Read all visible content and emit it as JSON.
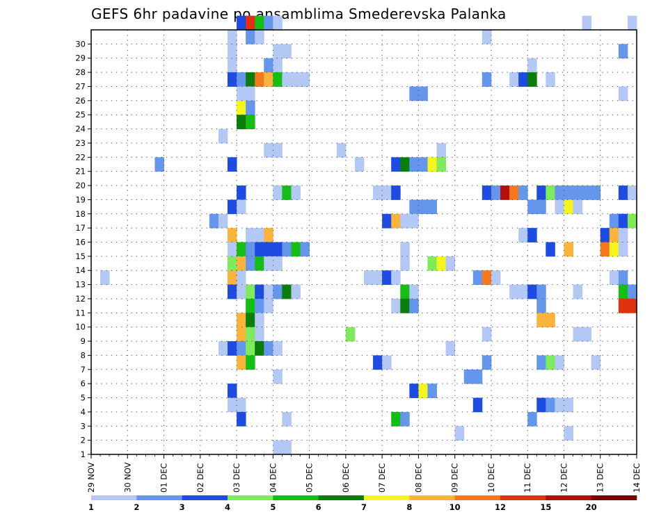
{
  "chart_data": {
    "type": "heatmap",
    "title": "GEFS 6hr padavine po ansamblima Smederevska Palanka",
    "xlabel": "",
    "ylabel": "",
    "y_members": [
      1,
      30
    ],
    "x_tick_labels": [
      "29 NOV",
      "30 NOV",
      "01 DEC",
      "02 DEC",
      "03 DEC",
      "04 DEC",
      "05 DEC",
      "06 DEC",
      "07 DEC",
      "08 DEC",
      "09 DEC",
      "10 DEC",
      "11 DEC",
      "12 DEC",
      "13 DEC",
      "14 DEC"
    ],
    "y_tick_labels": [
      "1",
      "2",
      "3",
      "4",
      "5",
      "6",
      "7",
      "8",
      "9",
      "10",
      "11",
      "12",
      "13",
      "14",
      "15",
      "16",
      "17",
      "18",
      "19",
      "20",
      "21",
      "22",
      "23",
      "24",
      "25",
      "26",
      "27",
      "28",
      "29",
      "30"
    ],
    "x_steps_per_day": 4,
    "grid": true,
    "colorbar": {
      "labels": [
        "1",
        "2",
        "3",
        "4",
        "5",
        "6",
        "7",
        "8",
        "10",
        "12",
        "15",
        "20"
      ],
      "colors": [
        "#b4c8f5",
        "#6496eb",
        "#1e4be1",
        "#7deb5a",
        "#14be14",
        "#0a7d0a",
        "#f5f51e",
        "#fab43c",
        "#f5781e",
        "#e1320f",
        "#b40f0a",
        "#780000"
      ]
    },
    "cells": [
      [
        30,
        16,
        3
      ],
      [
        30,
        17,
        10
      ],
      [
        30,
        18,
        5
      ],
      [
        30,
        19,
        2
      ],
      [
        30,
        20,
        1
      ],
      [
        30,
        54,
        1
      ],
      [
        30,
        59,
        1
      ],
      [
        30,
        60,
        1
      ],
      [
        29,
        15,
        1
      ],
      [
        29,
        17,
        2
      ],
      [
        29,
        18,
        1
      ],
      [
        29,
        43,
        1
      ],
      [
        28,
        15,
        1
      ],
      [
        28,
        20,
        1
      ],
      [
        28,
        21,
        1
      ],
      [
        28,
        58,
        2
      ],
      [
        27,
        15,
        1
      ],
      [
        27,
        19,
        2
      ],
      [
        27,
        20,
        1
      ],
      [
        27,
        48,
        1
      ],
      [
        26,
        15,
        3
      ],
      [
        26,
        16,
        2
      ],
      [
        26,
        17,
        6
      ],
      [
        26,
        18,
        9
      ],
      [
        26,
        19,
        8
      ],
      [
        26,
        20,
        5
      ],
      [
        26,
        21,
        1
      ],
      [
        26,
        22,
        1
      ],
      [
        26,
        23,
        1
      ],
      [
        26,
        43,
        2
      ],
      [
        26,
        46,
        1
      ],
      [
        26,
        47,
        3
      ],
      [
        26,
        48,
        6
      ],
      [
        26,
        50,
        1
      ],
      [
        25,
        16,
        1
      ],
      [
        25,
        17,
        1
      ],
      [
        25,
        35,
        2
      ],
      [
        25,
        36,
        2
      ],
      [
        25,
        58,
        1
      ],
      [
        24,
        16,
        7
      ],
      [
        24,
        17,
        2
      ],
      [
        23,
        16,
        6
      ],
      [
        23,
        17,
        5
      ],
      [
        22,
        14,
        1
      ],
      [
        21,
        19,
        1
      ],
      [
        21,
        20,
        1
      ],
      [
        21,
        27,
        1
      ],
      [
        21,
        38,
        1
      ],
      [
        20,
        7,
        2
      ],
      [
        20,
        15,
        3
      ],
      [
        20,
        29,
        1
      ],
      [
        20,
        33,
        3
      ],
      [
        20,
        34,
        6
      ],
      [
        20,
        35,
        2
      ],
      [
        20,
        36,
        2
      ],
      [
        20,
        37,
        7
      ],
      [
        20,
        38,
        4
      ],
      [
        18,
        16,
        3
      ],
      [
        18,
        20,
        1
      ],
      [
        18,
        21,
        5
      ],
      [
        18,
        22,
        1
      ],
      [
        18,
        31,
        1
      ],
      [
        18,
        32,
        1
      ],
      [
        18,
        33,
        3
      ],
      [
        18,
        43,
        3
      ],
      [
        18,
        44,
        2
      ],
      [
        18,
        45,
        11
      ],
      [
        18,
        46,
        9
      ],
      [
        18,
        47,
        2
      ],
      [
        18,
        49,
        3
      ],
      [
        18,
        50,
        4
      ],
      [
        18,
        51,
        2
      ],
      [
        18,
        52,
        2
      ],
      [
        18,
        53,
        2
      ],
      [
        18,
        54,
        2
      ],
      [
        18,
        55,
        2
      ],
      [
        18,
        58,
        3
      ],
      [
        18,
        59,
        1
      ],
      [
        18,
        60,
        2
      ],
      [
        17,
        15,
        3
      ],
      [
        17,
        16,
        1
      ],
      [
        17,
        35,
        2
      ],
      [
        17,
        36,
        2
      ],
      [
        17,
        37,
        2
      ],
      [
        17,
        48,
        2
      ],
      [
        17,
        49,
        2
      ],
      [
        17,
        51,
        1
      ],
      [
        17,
        52,
        7
      ],
      [
        17,
        53,
        1
      ],
      [
        16,
        13,
        2
      ],
      [
        16,
        14,
        1
      ],
      [
        16,
        32,
        3
      ],
      [
        16,
        33,
        8
      ],
      [
        16,
        34,
        1
      ],
      [
        16,
        35,
        1
      ],
      [
        16,
        57,
        2
      ],
      [
        16,
        58,
        3
      ],
      [
        16,
        59,
        4
      ],
      [
        16,
        60,
        3
      ],
      [
        15,
        15,
        8
      ],
      [
        15,
        17,
        1
      ],
      [
        15,
        18,
        1
      ],
      [
        15,
        19,
        8
      ],
      [
        15,
        47,
        1
      ],
      [
        15,
        48,
        3
      ],
      [
        15,
        56,
        3
      ],
      [
        15,
        57,
        8
      ],
      [
        15,
        58,
        1
      ],
      [
        15,
        60,
        1
      ],
      [
        14,
        15,
        1
      ],
      [
        14,
        16,
        5
      ],
      [
        14,
        17,
        2
      ],
      [
        14,
        18,
        3
      ],
      [
        14,
        19,
        3
      ],
      [
        14,
        20,
        3
      ],
      [
        14,
        21,
        2
      ],
      [
        14,
        22,
        5
      ],
      [
        14,
        23,
        2
      ],
      [
        14,
        34,
        1
      ],
      [
        14,
        50,
        3
      ],
      [
        14,
        52,
        8
      ],
      [
        14,
        56,
        9
      ],
      [
        14,
        57,
        7
      ],
      [
        14,
        58,
        1
      ],
      [
        13,
        15,
        4
      ],
      [
        13,
        16,
        8
      ],
      [
        13,
        17,
        2
      ],
      [
        13,
        18,
        5
      ],
      [
        13,
        19,
        1
      ],
      [
        13,
        20,
        1
      ],
      [
        13,
        34,
        1
      ],
      [
        13,
        37,
        4
      ],
      [
        13,
        38,
        7
      ],
      [
        13,
        39,
        1
      ],
      [
        12,
        1,
        1
      ],
      [
        12,
        15,
        8
      ],
      [
        12,
        16,
        1
      ],
      [
        12,
        30,
        1
      ],
      [
        12,
        31,
        1
      ],
      [
        12,
        32,
        3
      ],
      [
        12,
        33,
        1
      ],
      [
        12,
        42,
        2
      ],
      [
        12,
        43,
        9
      ],
      [
        12,
        44,
        1
      ],
      [
        12,
        57,
        1
      ],
      [
        12,
        58,
        2
      ],
      [
        11,
        15,
        3
      ],
      [
        11,
        16,
        1
      ],
      [
        11,
        17,
        4
      ],
      [
        11,
        18,
        3
      ],
      [
        11,
        19,
        1
      ],
      [
        11,
        20,
        2
      ],
      [
        11,
        21,
        6
      ],
      [
        11,
        22,
        1
      ],
      [
        11,
        34,
        5
      ],
      [
        11,
        35,
        1
      ],
      [
        11,
        46,
        1
      ],
      [
        11,
        47,
        1
      ],
      [
        11,
        48,
        3
      ],
      [
        11,
        49,
        2
      ],
      [
        11,
        53,
        1
      ],
      [
        11,
        58,
        5
      ],
      [
        11,
        59,
        2
      ],
      [
        11,
        61,
        1
      ],
      [
        10,
        17,
        5
      ],
      [
        10,
        18,
        2
      ],
      [
        10,
        19,
        1
      ],
      [
        10,
        33,
        1
      ],
      [
        10,
        34,
        6
      ],
      [
        10,
        35,
        2
      ],
      [
        10,
        49,
        2
      ],
      [
        10,
        58,
        10
      ],
      [
        10,
        59,
        10
      ],
      [
        10,
        60,
        1
      ],
      [
        9,
        16,
        8
      ],
      [
        9,
        17,
        6
      ],
      [
        9,
        18,
        1
      ],
      [
        9,
        49,
        8
      ],
      [
        9,
        50,
        8
      ],
      [
        9,
        61,
        12
      ],
      [
        9,
        62,
        12
      ],
      [
        8,
        16,
        8
      ],
      [
        8,
        17,
        4
      ],
      [
        8,
        18,
        1
      ],
      [
        8,
        28,
        4
      ],
      [
        8,
        43,
        1
      ],
      [
        8,
        53,
        1
      ],
      [
        8,
        54,
        1
      ],
      [
        7,
        14,
        1
      ],
      [
        7,
        15,
        3
      ],
      [
        7,
        16,
        2
      ],
      [
        7,
        17,
        4
      ],
      [
        7,
        18,
        6
      ],
      [
        7,
        19,
        2
      ],
      [
        7,
        20,
        1
      ],
      [
        7,
        39,
        1
      ],
      [
        6,
        16,
        8
      ],
      [
        6,
        17,
        5
      ],
      [
        6,
        31,
        3
      ],
      [
        6,
        32,
        1
      ],
      [
        6,
        43,
        2
      ],
      [
        6,
        49,
        2
      ],
      [
        6,
        50,
        4
      ],
      [
        6,
        51,
        1
      ],
      [
        6,
        55,
        1
      ],
      [
        5,
        20,
        1
      ],
      [
        5,
        41,
        2
      ],
      [
        5,
        42,
        2
      ],
      [
        4,
        15,
        3
      ],
      [
        4,
        35,
        3
      ],
      [
        4,
        36,
        7
      ],
      [
        4,
        37,
        2
      ],
      [
        3,
        15,
        1
      ],
      [
        3,
        16,
        1
      ],
      [
        3,
        42,
        3
      ],
      [
        3,
        49,
        3
      ],
      [
        3,
        50,
        2
      ],
      [
        3,
        51,
        1
      ],
      [
        3,
        52,
        1
      ],
      [
        2,
        16,
        3
      ],
      [
        2,
        21,
        1
      ],
      [
        2,
        33,
        5
      ],
      [
        2,
        34,
        2
      ],
      [
        2,
        48,
        2
      ],
      [
        1,
        40,
        1
      ],
      [
        1,
        52,
        1
      ],
      [
        0,
        20,
        1
      ],
      [
        0,
        21,
        1
      ]
    ]
  }
}
